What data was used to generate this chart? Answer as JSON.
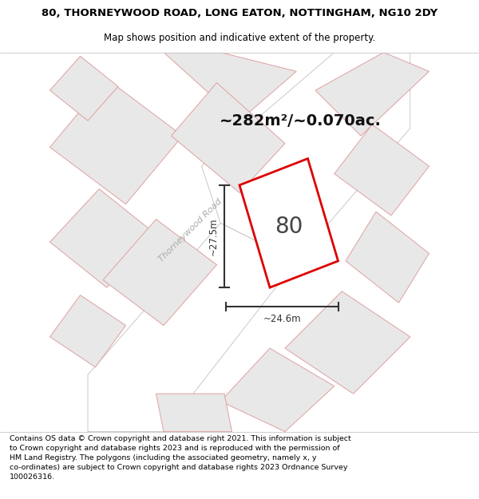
{
  "title_line1": "80, THORNEYWOOD ROAD, LONG EATON, NOTTINGHAM, NG10 2DY",
  "title_line2": "Map shows position and indicative extent of the property.",
  "area_text": "~282m²/~0.070ac.",
  "label_number": "80",
  "label_width": "~24.6m",
  "label_height": "~27.5m",
  "road_label": "Thorneywood Road",
  "footer_text": "Contains OS data © Crown copyright and database right 2021. This information is subject to Crown copyright and database rights 2023 and is reproduced with the permission of HM Land Registry. The polygons (including the associated geometry, namely x, y co-ordinates) are subject to Crown copyright and database rights 2023 Ordnance Survey 100026316.",
  "map_bg": "#f2f2f2",
  "building_fill": "#e8e8e8",
  "building_edge": "#e0a0a0",
  "highlight_fill": "#ffffff",
  "highlight_edge": "#dd0000",
  "road_fill": "#ffffff",
  "road_edge": "#c0c0c0",
  "title_color": "#000000",
  "footer_color": "#000000",
  "area_text_color": "#111111",
  "dim_color": "#333333",
  "road_text_color": "#aaaaaa"
}
